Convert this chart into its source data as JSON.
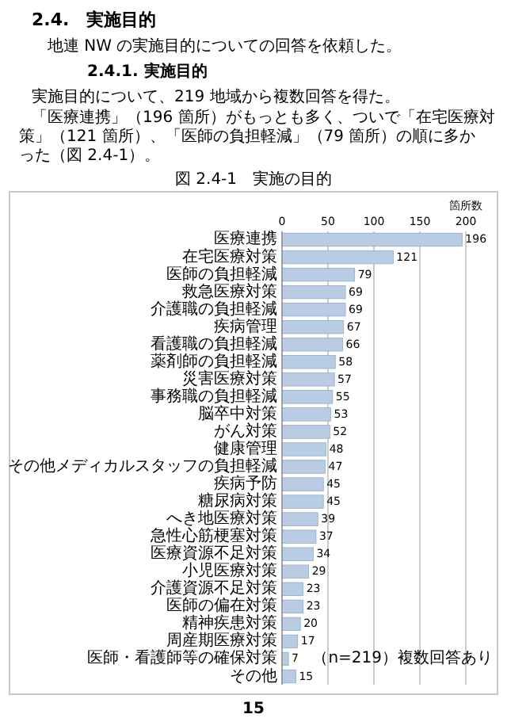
{
  "chart_data": {
    "type": "bar",
    "orientation": "horizontal",
    "title": "図 2.4-1　実施の目的",
    "xlabel": "箇所数",
    "categories": [
      "医療連携",
      "在宅医療対策",
      "医師の負担軽減",
      "救急医療対策",
      "介護職の負担軽減",
      "疾病管理",
      "看護職の負担軽減",
      "薬剤師の負担軽減",
      "災害医療対策",
      "事務職の負担軽減",
      "脳卒中対策",
      "がん対策",
      "健康管理",
      "その他メディカルスタッフの負担軽減",
      "疾病予防",
      "糖尿病対策",
      "へき地医療対策",
      "急性心筋梗塞対策",
      "医療資源不足対策",
      "小児医療対策",
      "介護資源不足対策",
      "医師の偏在対策",
      "精神疾患対策",
      "周産期医療対策",
      "医師・看護師等の確保対策",
      "その他"
    ],
    "values": [
      196,
      121,
      79,
      69,
      69,
      67,
      66,
      58,
      57,
      55,
      53,
      52,
      48,
      47,
      45,
      45,
      39,
      37,
      34,
      29,
      23,
      23,
      20,
      17,
      7,
      15
    ],
    "color": "#b8cce4",
    "xlim": [
      0,
      200
    ],
    "xticks": [
      0,
      50,
      100,
      150,
      200
    ],
    "grid": "x",
    "data_labels": true,
    "annotations": [
      "2.4.　実施目的",
      "地連 NW の実施目的についての回答を依頼した。",
      "2.4.1. 実施目的",
      "実施目的について、219 地域から複数回答を得た。",
      "「医療連携」（196 箇所）がもっとも多く、ついで「在宅医療対策」（121 箇所）、「医師の負担軽減」（79 箇所）の順に多かった（図 2.4-1）。",
      "（n=219）複数回答あり",
      "15"
    ]
  }
}
